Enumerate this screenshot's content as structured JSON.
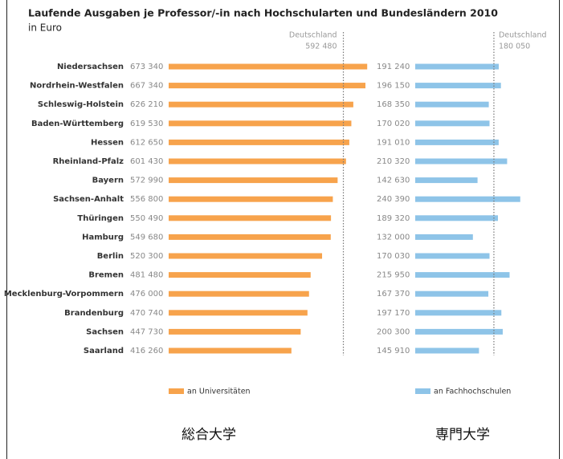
{
  "header": {
    "title": "Laufende Ausgaben je Professor/-in nach Hochschularten und Bundesländern 2010",
    "subtitle": "in Euro"
  },
  "chart_data": [
    {
      "type": "bar",
      "orientation": "horizontal",
      "name": "an Universitäten",
      "color": "#f7a34c",
      "categories": [
        "Niedersachsen",
        "Nordrhein-Westfalen",
        "Schleswig-Holstein",
        "Baden-Württemberg",
        "Hessen",
        "Rheinland-Pfalz",
        "Bayern",
        "Sachsen-Anhalt",
        "Thüringen",
        "Hamburg",
        "Berlin",
        "Bremen",
        "Mecklenburg-Vorpommern",
        "Brandenburg",
        "Sachsen",
        "Saarland"
      ],
      "values": [
        673340,
        667340,
        626210,
        619530,
        612650,
        601430,
        572990,
        556800,
        550490,
        549680,
        520300,
        481480,
        476000,
        470740,
        447730,
        416260
      ],
      "value_labels": [
        "673 340",
        "667 340",
        "626 210",
        "619 530",
        "612 650",
        "601 430",
        "572 990",
        "556 800",
        "550 490",
        "549 680",
        "520 300",
        "481 480",
        "476 000",
        "470 740",
        "447 730",
        "416 260"
      ],
      "xlim": [
        0,
        700000
      ],
      "reference": {
        "label": "Deutschland",
        "value": 592480,
        "value_label": "592 480"
      },
      "caption": "総合大学"
    },
    {
      "type": "bar",
      "orientation": "horizontal",
      "name": "an Fachhochschulen",
      "color": "#8ec4e8",
      "values": [
        191240,
        196150,
        168350,
        170020,
        191010,
        210320,
        142630,
        240390,
        189320,
        132000,
        170030,
        215950,
        167370,
        197170,
        200300,
        145910
      ],
      "value_labels": [
        "191 240",
        "196 150",
        "168 350",
        "170 020",
        "191 010",
        "210 320",
        "142 630",
        "240 390",
        "189 320",
        "132 000",
        "170 030",
        "215 950",
        "167 370",
        "197 170",
        "200 300",
        "145 910"
      ],
      "xlim": [
        0,
        250000
      ],
      "reference": {
        "label": "Deutschland",
        "value": 180050,
        "value_label": "180 050"
      },
      "caption": "専門大学"
    }
  ]
}
